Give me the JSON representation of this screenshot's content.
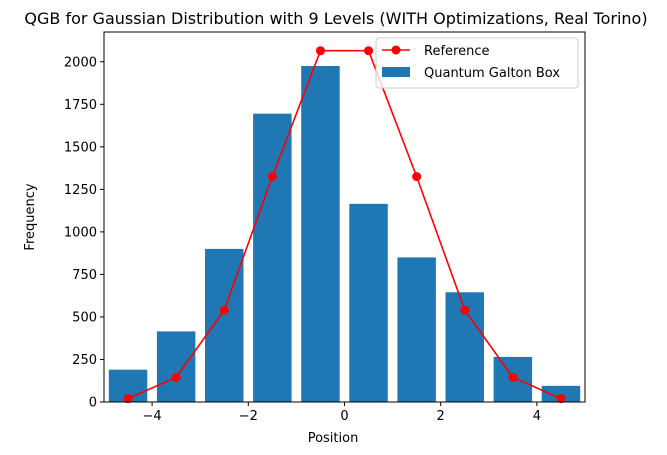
{
  "chart_data": {
    "type": "bar",
    "title": "QGB for Gaussian Distribution with 9 Levels (WITH Optimizations, Real Torino)",
    "xlabel": "Position",
    "ylabel": "Frequency",
    "xlim": [
      -5.0,
      5.0
    ],
    "ylim": [
      0,
      2175
    ],
    "xticks": [
      -4,
      -2,
      0,
      2,
      4
    ],
    "xtick_labels": [
      "−4",
      "−2",
      "0",
      "2",
      "4"
    ],
    "yticks": [
      0,
      250,
      500,
      750,
      1000,
      1250,
      1500,
      1750,
      2000
    ],
    "ytick_labels": [
      "0",
      "250",
      "500",
      "750",
      "1000",
      "1250",
      "1500",
      "1750",
      "2000"
    ],
    "grid": false,
    "legend_position": "top-right",
    "series": [
      {
        "name": "Quantum Galton Box",
        "kind": "bar",
        "color": "#1f77b4",
        "bar_width": 0.8,
        "x": [
          -4.5,
          -3.5,
          -2.5,
          -1.5,
          -0.5,
          0.5,
          1.5,
          2.5,
          3.5,
          4.5
        ],
        "values": [
          190,
          415,
          900,
          1695,
          1975,
          1165,
          850,
          645,
          265,
          95
        ]
      },
      {
        "name": "Reference",
        "kind": "line",
        "color": "#ff0000",
        "marker": "circle",
        "x": [
          -4.5,
          -3.5,
          -2.5,
          -1.5,
          -0.5,
          0.5,
          1.5,
          2.5,
          3.5,
          4.5
        ],
        "values": [
          20,
          145,
          540,
          1325,
          2065,
          2065,
          1325,
          540,
          145,
          20
        ]
      }
    ]
  }
}
